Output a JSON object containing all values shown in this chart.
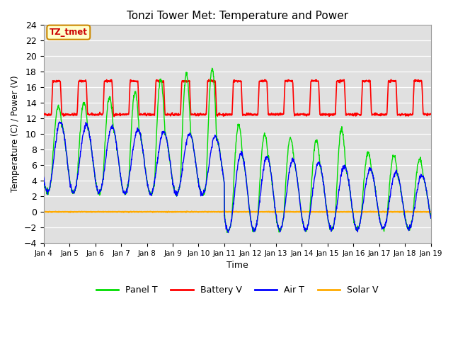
{
  "title": "Tonzi Tower Met: Temperature and Power",
  "xlabel": "Time",
  "ylabel": "Temperature (C) / Power (V)",
  "ylim": [
    -4,
    24
  ],
  "yticks": [
    -4,
    -2,
    0,
    2,
    4,
    6,
    8,
    10,
    12,
    14,
    16,
    18,
    20,
    22,
    24
  ],
  "xtick_labels": [
    "Jan 4",
    "Jan 5",
    "Jan 6",
    "Jan 7",
    "Jan 8",
    "Jan 9",
    "Jan 10",
    "Jan 11",
    "Jan 12",
    "Jan 13",
    "Jan 14",
    "Jan 15",
    "Jan 16",
    "Jan 17",
    "Jan 18",
    "Jan 19"
  ],
  "legend_labels": [
    "Panel T",
    "Battery V",
    "Air T",
    "Solar V"
  ],
  "legend_colors": [
    "#00dd00",
    "#ff0000",
    "#0000ff",
    "#ffaa00"
  ],
  "annotation_text": "TZ_tmet",
  "annotation_bg": "#ffffcc",
  "annotation_border": "#cc8800",
  "bg_color": "#e0e0e0",
  "panel_color": "#00dd00",
  "battery_color": "#ff0000",
  "air_color": "#0000ff",
  "solar_color": "#ffaa00"
}
